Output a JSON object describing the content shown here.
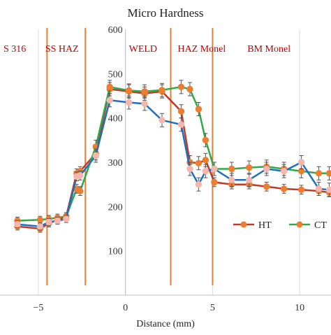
{
  "chart_data": {
    "type": "line",
    "title": "Micro Hardness",
    "xlabel": "Distance (mm)",
    "ylabel": "",
    "xlim": [
      -7.2,
      11.8
    ],
    "ylim": [
      0,
      600
    ],
    "x_ticks": [
      -5,
      0,
      5,
      10
    ],
    "x_tick_labels": [
      "−5",
      "0",
      "5",
      "10"
    ],
    "y_ticks": [
      100,
      200,
      300,
      400,
      500,
      600
    ],
    "y_tick_labels": [
      "100",
      "200",
      "300",
      "400",
      "500",
      "600"
    ],
    "grid": "vertical",
    "legend_position": "right-middle",
    "zones": [
      {
        "label": "S 316",
        "x": -7.0
      },
      {
        "label": "SS HAZ",
        "x": -4.6
      },
      {
        "label": "WELD",
        "x": 0.2
      },
      {
        "label": "HAZ Monel",
        "x": 3.0
      },
      {
        "label": "BM Monel",
        "x": 7.0
      }
    ],
    "zone_boundaries": [
      -4.5,
      -2.3,
      2.6,
      5.0
    ],
    "zone_label_color": "#c00000",
    "zone_line_color": "#ed7d31",
    "series": [
      {
        "name": "HT",
        "color": "#c0392b",
        "marker_color": "#ed7d31",
        "x": [
          -6.2,
          -4.9,
          -4.4,
          -3.9,
          -3.4,
          -2.8,
          -2.6,
          -1.7,
          -0.9,
          0.2,
          1.1,
          2.1,
          3.2,
          3.7,
          4.2,
          4.6,
          5.1,
          6.1,
          7.1,
          8.1,
          9.1,
          10.1,
          11.1,
          11.7
        ],
        "y": [
          155,
          150,
          162,
          170,
          178,
          275,
          280,
          320,
          465,
          460,
          455,
          460,
          415,
          300,
          298,
          305,
          255,
          250,
          250,
          245,
          240,
          238,
          235,
          232
        ],
        "error": [
          8,
          8,
          8,
          8,
          8,
          10,
          10,
          15,
          15,
          15,
          15,
          15,
          15,
          15,
          15,
          15,
          10,
          10,
          10,
          10,
          10,
          10,
          10,
          10
        ]
      },
      {
        "name": "CT",
        "color": "#2eaa4a",
        "marker_color": "#ed7d31",
        "x": [
          -6.2,
          -4.9,
          -4.4,
          -3.9,
          -3.4,
          -2.8,
          -2.6,
          -1.7,
          -0.9,
          0.2,
          1.1,
          2.1,
          3.2,
          3.7,
          4.2,
          4.6,
          5.1,
          6.1,
          7.1,
          8.1,
          9.1,
          10.1,
          11.1,
          11.7
        ],
        "y": [
          168,
          170,
          172,
          175,
          178,
          240,
          235,
          335,
          470,
          462,
          460,
          463,
          470,
          465,
          420,
          350,
          285,
          285,
          288,
          290,
          285,
          280,
          275,
          275
        ],
        "error": [
          8,
          8,
          8,
          8,
          8,
          10,
          10,
          15,
          15,
          15,
          15,
          15,
          15,
          15,
          15,
          15,
          15,
          15,
          15,
          15,
          15,
          15,
          15,
          15
        ]
      },
      {
        "name": "",
        "color": "#1f6fc1",
        "marker_color": "#f4b6ad",
        "x": [
          -6.2,
          -4.9,
          -4.4,
          -3.9,
          -3.4,
          -2.8,
          -2.6,
          -1.7,
          -0.9,
          0.2,
          1.1,
          2.1,
          3.2,
          3.7,
          4.2,
          4.6,
          5.1,
          6.1,
          7.1,
          8.1,
          9.1,
          10.1,
          11.1,
          11.7
        ],
        "y": [
          160,
          155,
          165,
          168,
          172,
          268,
          270,
          315,
          440,
          435,
          432,
          395,
          385,
          285,
          250,
          280,
          285,
          260,
          260,
          285,
          280,
          300,
          240,
          238
        ],
        "error": [
          8,
          8,
          8,
          8,
          8,
          10,
          10,
          15,
          15,
          15,
          15,
          15,
          15,
          15,
          15,
          15,
          15,
          15,
          15,
          15,
          15,
          15,
          15,
          15
        ]
      }
    ]
  }
}
